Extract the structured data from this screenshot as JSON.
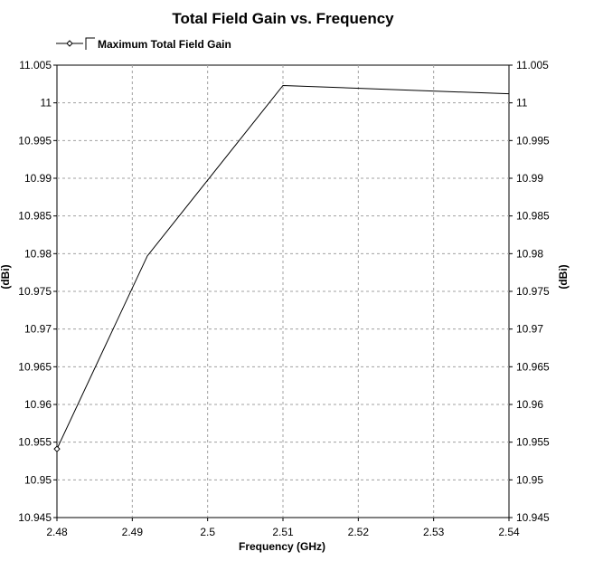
{
  "chart_data": {
    "type": "line",
    "title": "Total Field Gain vs. Frequency",
    "xlabel": "Frequency (GHz)",
    "ylabel": "(dBi)",
    "y2label": "(dBi)",
    "xlim": [
      2.48,
      2.54
    ],
    "ylim": [
      10.945,
      11.005
    ],
    "xticks": [
      "2.48",
      "2.49",
      "2.5",
      "2.51",
      "2.52",
      "2.53",
      "2.54"
    ],
    "yticks": [
      "11.005",
      "11",
      "10.995",
      "10.99",
      "10.985",
      "10.98",
      "10.975",
      "10.97",
      "10.965",
      "10.96",
      "10.955",
      "10.95",
      "10.945"
    ],
    "grid": true,
    "legend_position": "top-left",
    "series": [
      {
        "name": "Maximum Total Field Gain",
        "color": "#000000",
        "marker": "diamond",
        "x": [
          2.48,
          2.492,
          2.51,
          2.54
        ],
        "y": [
          10.9541,
          10.9797,
          11.0023,
          11.0012
        ]
      }
    ]
  }
}
